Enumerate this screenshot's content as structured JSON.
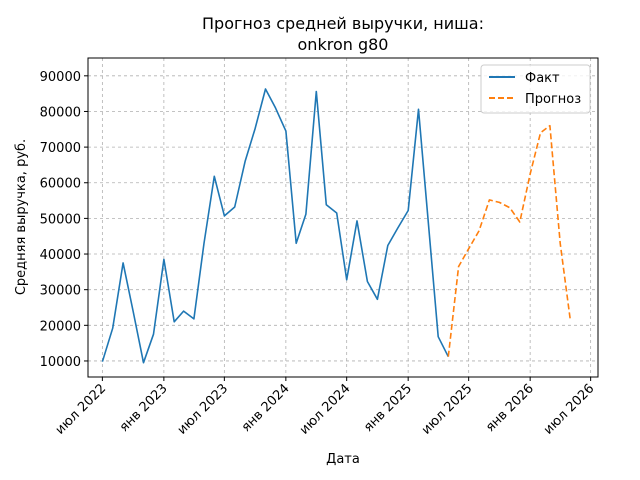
{
  "chart_data": {
    "type": "line",
    "title_line1": "Прогноз средней выручки, ниша:",
    "title_line2": "onkron g80",
    "xlabel": "Дата",
    "ylabel": "Средняя выручка, руб.",
    "ylim": [
      5500,
      95000
    ],
    "xlim": [
      "2022-05-19",
      "2026-07-23"
    ],
    "yticks": [
      10000,
      20000,
      30000,
      40000,
      50000,
      60000,
      70000,
      80000,
      90000
    ],
    "xticks": [
      {
        "date": "2022-07-01",
        "label": "июл 2022"
      },
      {
        "date": "2023-01-01",
        "label": "янв 2023"
      },
      {
        "date": "2023-07-01",
        "label": "июл 2023"
      },
      {
        "date": "2024-01-01",
        "label": "янв 2024"
      },
      {
        "date": "2024-07-01",
        "label": "июл 2024"
      },
      {
        "date": "2025-01-01",
        "label": "янв 2025"
      },
      {
        "date": "2025-07-01",
        "label": "июл 2025"
      },
      {
        "date": "2026-01-01",
        "label": "янв 2026"
      },
      {
        "date": "2026-07-01",
        "label": "июл 2026"
      }
    ],
    "grid": true,
    "legend_position": "top-right",
    "series": [
      {
        "name": "Факт",
        "color": "#1f77b4",
        "style": "solid",
        "points": [
          [
            "2022-07-01",
            9800
          ],
          [
            "2022-08-01",
            19200
          ],
          [
            "2022-09-01",
            37500
          ],
          [
            "2022-10-01",
            24000
          ],
          [
            "2022-11-01",
            9500
          ],
          [
            "2022-12-01",
            17500
          ],
          [
            "2023-01-01",
            38500
          ],
          [
            "2023-02-01",
            21000
          ],
          [
            "2023-03-01",
            24000
          ],
          [
            "2023-04-01",
            21800
          ],
          [
            "2023-05-01",
            43000
          ],
          [
            "2023-06-01",
            61800
          ],
          [
            "2023-07-01",
            50700
          ],
          [
            "2023-08-01",
            53200
          ],
          [
            "2023-09-01",
            66000
          ],
          [
            "2023-10-01",
            75200
          ],
          [
            "2023-11-01",
            86300
          ],
          [
            "2023-12-01",
            81000
          ],
          [
            "2024-01-01",
            74500
          ],
          [
            "2024-02-01",
            43000
          ],
          [
            "2024-03-01",
            51200
          ],
          [
            "2024-04-01",
            85600
          ],
          [
            "2024-05-01",
            53800
          ],
          [
            "2024-06-01",
            51500
          ],
          [
            "2024-07-01",
            32800
          ],
          [
            "2024-08-01",
            49300
          ],
          [
            "2024-09-01",
            32300
          ],
          [
            "2024-10-01",
            27300
          ],
          [
            "2024-11-01",
            42400
          ],
          [
            "2024-12-01",
            47300
          ],
          [
            "2025-01-01",
            52200
          ],
          [
            "2025-02-01",
            80600
          ],
          [
            "2025-03-01",
            50200
          ],
          [
            "2025-04-01",
            16800
          ],
          [
            "2025-05-01",
            11200
          ]
        ]
      },
      {
        "name": "Прогноз",
        "color": "#ff7f0e",
        "style": "dashed",
        "points": [
          [
            "2025-05-01",
            11200
          ],
          [
            "2025-06-01",
            36500
          ],
          [
            "2025-07-01",
            41500
          ],
          [
            "2025-08-01",
            46500
          ],
          [
            "2025-09-01",
            55200
          ],
          [
            "2025-10-01",
            54500
          ],
          [
            "2025-11-01",
            53000
          ],
          [
            "2025-12-01",
            49000
          ],
          [
            "2026-01-01",
            62500
          ],
          [
            "2026-02-01",
            74000
          ],
          [
            "2026-03-01",
            76000
          ],
          [
            "2026-04-01",
            43000
          ],
          [
            "2026-05-01",
            21500
          ]
        ]
      }
    ]
  }
}
